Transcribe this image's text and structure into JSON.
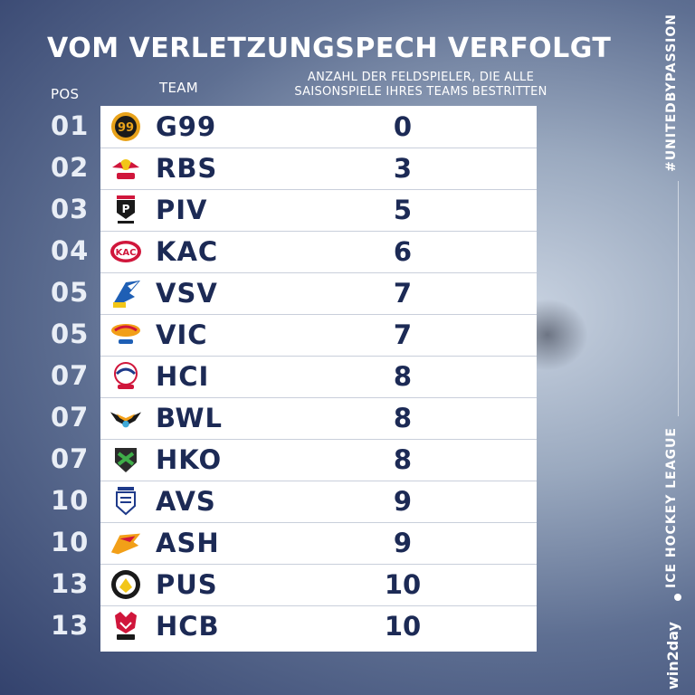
{
  "title": "VOM VERLETZUNGSPECH VERFOLGT",
  "headers": {
    "pos": "POS",
    "team": "TEAM",
    "count_line1": "ANZAHL DER FELDSPIELER, DIE ALLE",
    "count_line2": "SAISONSPIELE IHRES TEAMS BESTRITTEN"
  },
  "rows": [
    {
      "pos": "01",
      "team": "G99",
      "count": "0"
    },
    {
      "pos": "02",
      "team": "RBS",
      "count": "3"
    },
    {
      "pos": "03",
      "team": "PIV",
      "count": "5"
    },
    {
      "pos": "04",
      "team": "KAC",
      "count": "6"
    },
    {
      "pos": "05",
      "team": "VSV",
      "count": "7"
    },
    {
      "pos": "05",
      "team": "VIC",
      "count": "7"
    },
    {
      "pos": "07",
      "team": "HCI",
      "count": "8"
    },
    {
      "pos": "07",
      "team": "BWL",
      "count": "8"
    },
    {
      "pos": "07",
      "team": "HKO",
      "count": "8"
    },
    {
      "pos": "10",
      "team": "AVS",
      "count": "9"
    },
    {
      "pos": "10",
      "team": "ASH",
      "count": "9"
    },
    {
      "pos": "13",
      "team": "PUS",
      "count": "10"
    },
    {
      "pos": "13",
      "team": "HCB",
      "count": "10"
    }
  ],
  "sidebar": {
    "hashtag": "#UNITEDBYPASSION",
    "league": "ICE HOCKEY LEAGUE",
    "sponsor": "win2day"
  },
  "colors": {
    "text_dark": "#1c2a55",
    "panel": "#ffffff"
  }
}
